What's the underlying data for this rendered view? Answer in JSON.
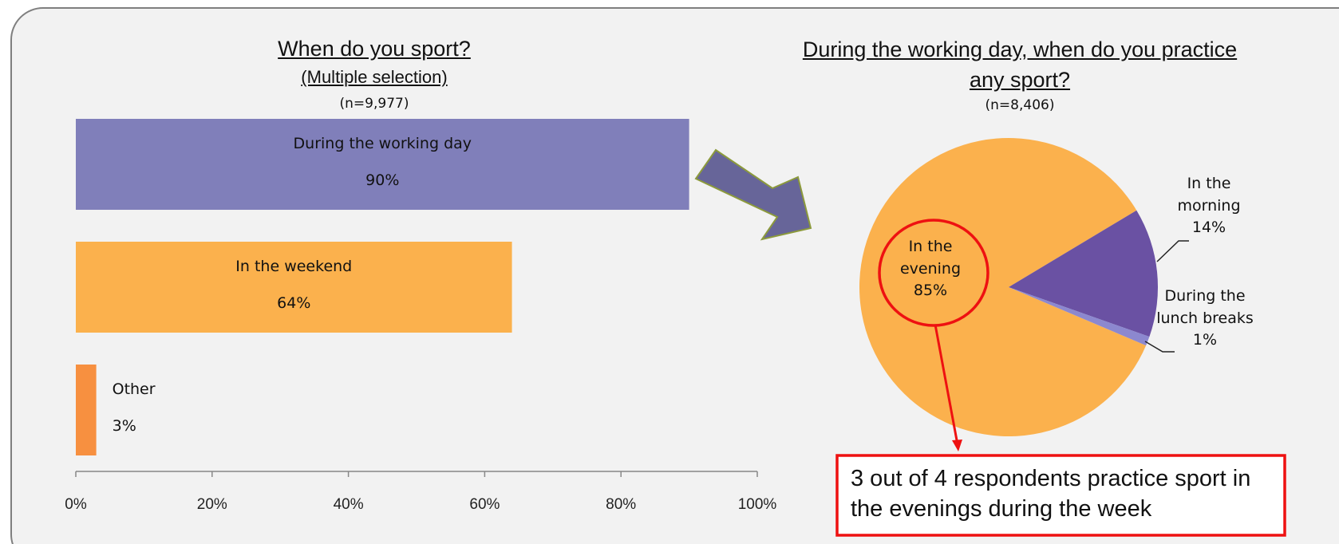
{
  "chart_data": [
    {
      "type": "barh",
      "title": "When do you sport?",
      "subtitle": "(Multiple selection)",
      "note": "(n=9,977)",
      "categories": [
        "During the working day",
        "In the weekend",
        "Other"
      ],
      "values": [
        90,
        64,
        3
      ],
      "value_labels": [
        "90%",
        "64%",
        "3%"
      ],
      "colors": [
        "#807fba",
        "#fbb14d",
        "#f79040"
      ],
      "xlim": [
        0,
        100
      ],
      "xticks": [
        {
          "value": 0,
          "label": "0%"
        },
        {
          "value": 20,
          "label": "20%"
        },
        {
          "value": 40,
          "label": "40%"
        },
        {
          "value": 60,
          "label": "60%"
        },
        {
          "value": 80,
          "label": "80%"
        },
        {
          "value": 100,
          "label": "100%"
        }
      ]
    },
    {
      "type": "pie",
      "title": "During the working day, when do you practice any sport?",
      "note": "(n=8,406)",
      "categories": [
        "In the evening",
        "In the morning",
        "During the lunch breaks"
      ],
      "values": [
        85,
        14,
        1
      ],
      "value_labels": [
        "85%",
        "14%",
        "1%"
      ],
      "colors": [
        "#fbb14d",
        "#6a51a3",
        "#8c88cf"
      ],
      "annotation": "3 out of 4 respondents practice sport in the evenings during the week"
    }
  ]
}
